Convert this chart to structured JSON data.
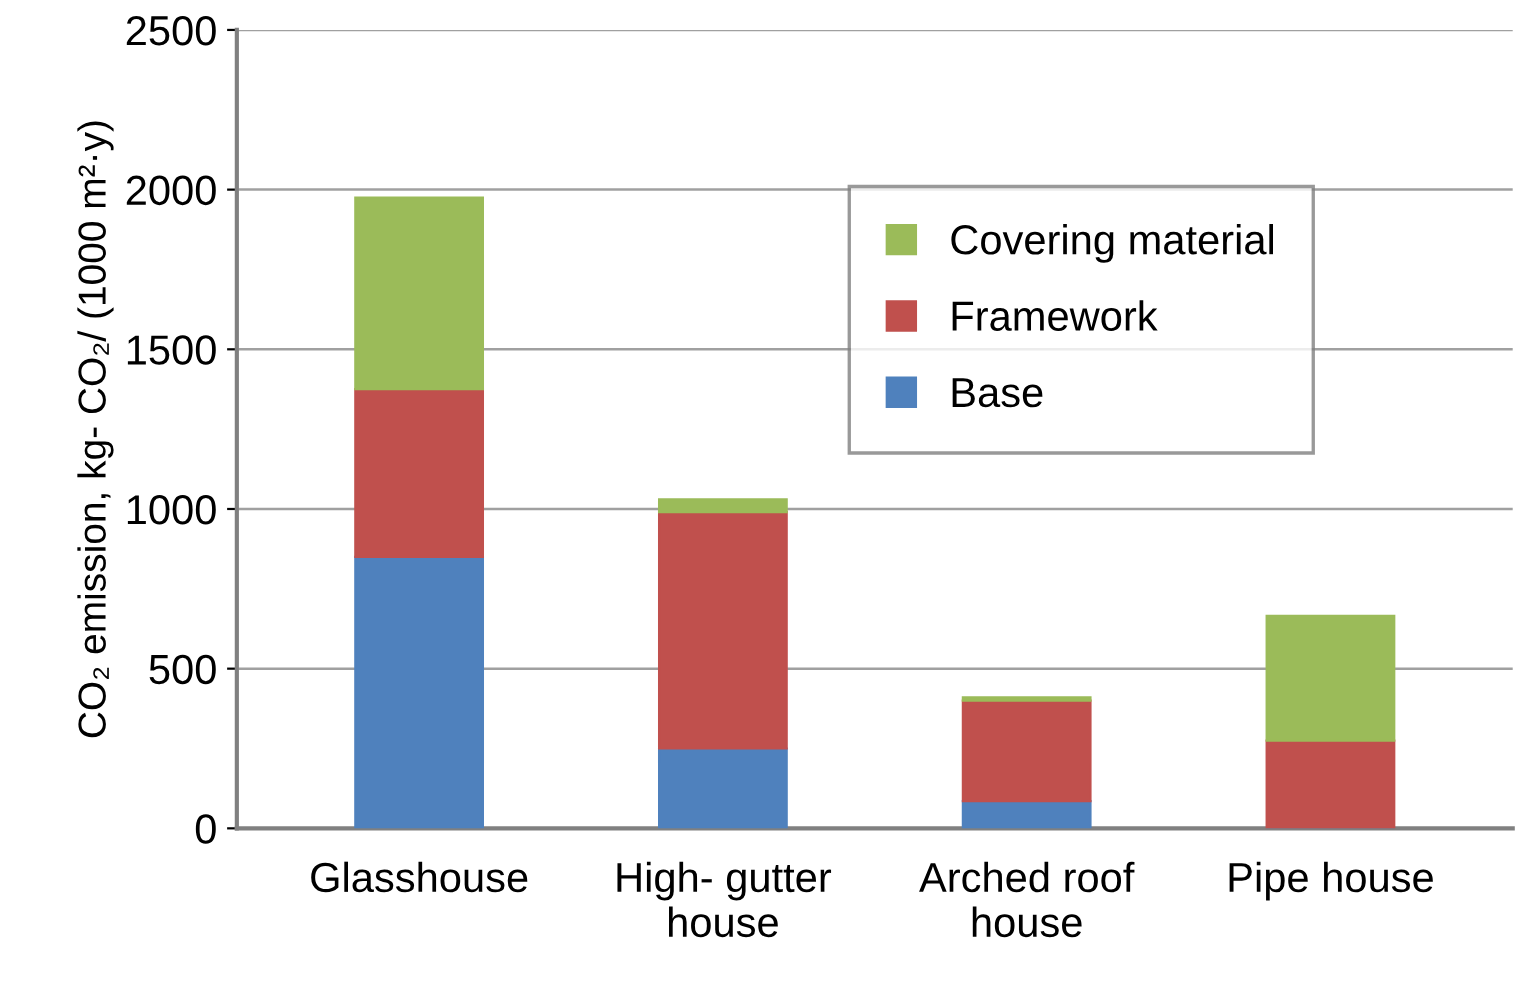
{
  "chart_data": {
    "type": "bar",
    "stacked": true,
    "ylabel": "CO₂ emission, kg- CO₂/ (1000 m²·y)",
    "categories": [
      "Glasshouse",
      "High- gutter\nhouse",
      "Arched roof\nhouse",
      "Pipe house"
    ],
    "series": [
      {
        "name": "Base",
        "color": "#4f81bd",
        "values": [
          850,
          250,
          85,
          0
        ]
      },
      {
        "name": "Framework",
        "color": "#c0504d",
        "values": [
          525,
          740,
          315,
          275
        ]
      },
      {
        "name": "Covering material",
        "color": "#9bbb59",
        "values": [
          600,
          40,
          10,
          390
        ]
      }
    ],
    "ylim": [
      0,
      2500
    ],
    "yticks": [
      0,
      500,
      1000,
      1500,
      2000,
      2500
    ],
    "grid": "y",
    "legend": "top right"
  }
}
